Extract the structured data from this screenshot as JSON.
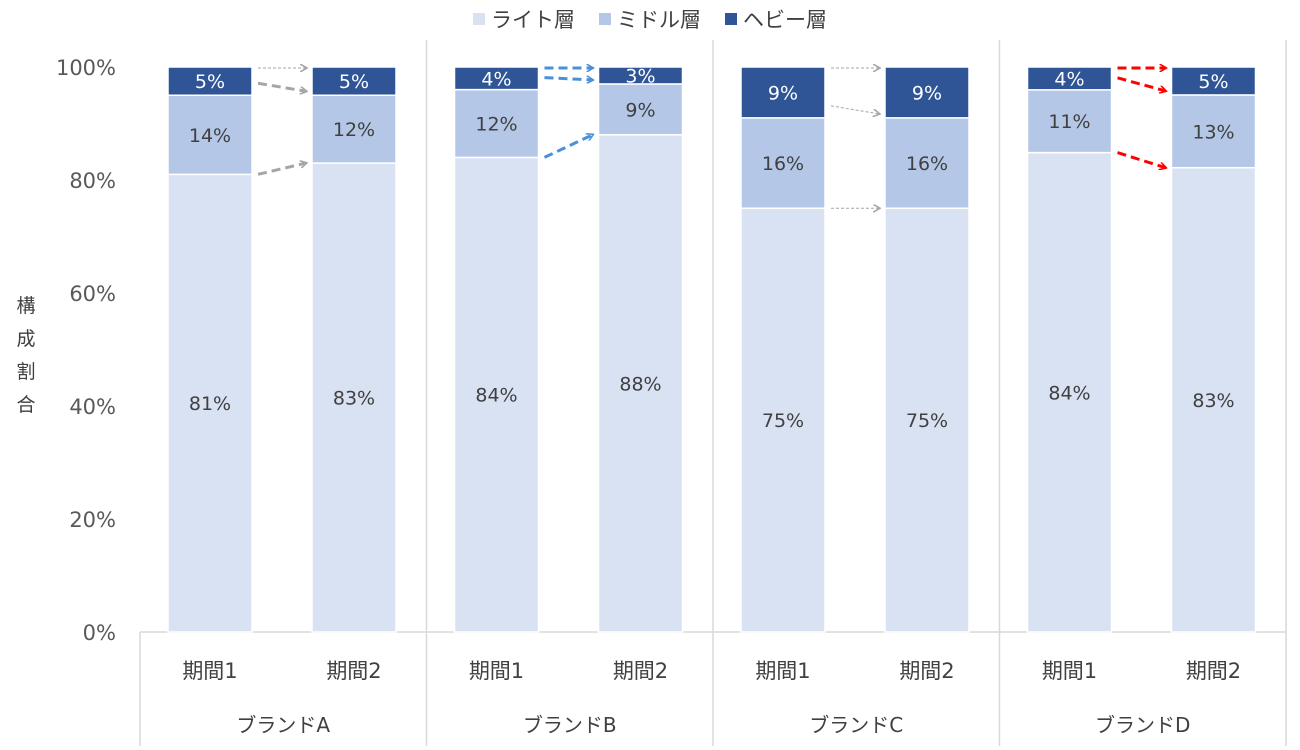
{
  "chart_data": {
    "type": "bar",
    "stacked": "100%",
    "title": "",
    "xlabel": "",
    "ylabel": "構成割合",
    "ylim": [
      0,
      100
    ],
    "yticks": [
      "0%",
      "20%",
      "40%",
      "60%",
      "80%",
      "100%"
    ],
    "grid": false,
    "legend_position": "top",
    "groups": [
      "ブランドA",
      "ブランドB",
      "ブランドC",
      "ブランドD"
    ],
    "categories": [
      "期間1",
      "期間2"
    ],
    "series": [
      {
        "name": "ライト層",
        "color": "#D9E2F3",
        "values": [
          [
            81,
            83
          ],
          [
            84,
            88
          ],
          [
            75,
            75
          ],
          [
            84,
            83
          ]
        ],
        "labels": [
          [
            "81%",
            "83%"
          ],
          [
            "84%",
            "88%"
          ],
          [
            "75%",
            "75%"
          ],
          [
            "84%",
            "83%"
          ]
        ]
      },
      {
        "name": "ミドル層",
        "color": "#B4C7E7",
        "values": [
          [
            14,
            12
          ],
          [
            12,
            9
          ],
          [
            16,
            16
          ],
          [
            11,
            13
          ]
        ],
        "labels": [
          [
            "14%",
            "12%"
          ],
          [
            "12%",
            "9%"
          ],
          [
            "16%",
            "16%"
          ],
          [
            "11%",
            "13%"
          ]
        ]
      },
      {
        "name": "ヘビー層",
        "color": "#2F5597",
        "values": [
          [
            5,
            5
          ],
          [
            4,
            3
          ],
          [
            9,
            9
          ],
          [
            4,
            5
          ]
        ],
        "labels": [
          [
            "5%",
            "5%"
          ],
          [
            "4%",
            "3%"
          ],
          [
            "9%",
            "9%"
          ],
          [
            "4%",
            "5%"
          ]
        ]
      }
    ],
    "arrows": [
      {
        "group": "ブランドA",
        "color": "#A6A6A6",
        "style": "thin-dotted",
        "emphasis": [
          false,
          true,
          true
        ]
      },
      {
        "group": "ブランドB",
        "color": "#4A90D9",
        "style": "dashed",
        "emphasis": [
          true,
          true,
          true
        ]
      },
      {
        "group": "ブランドC",
        "color": "#A6A6A6",
        "style": "thin-dotted",
        "emphasis": [
          false,
          false,
          false
        ]
      },
      {
        "group": "ブランドD",
        "color": "#FF0000",
        "style": "dashed",
        "emphasis": [
          true,
          true,
          true
        ]
      }
    ],
    "arrow_colors": {
      "neutral": "#A6A6A6",
      "blue": "#4A90D9",
      "red": "#FF0000"
    }
  }
}
